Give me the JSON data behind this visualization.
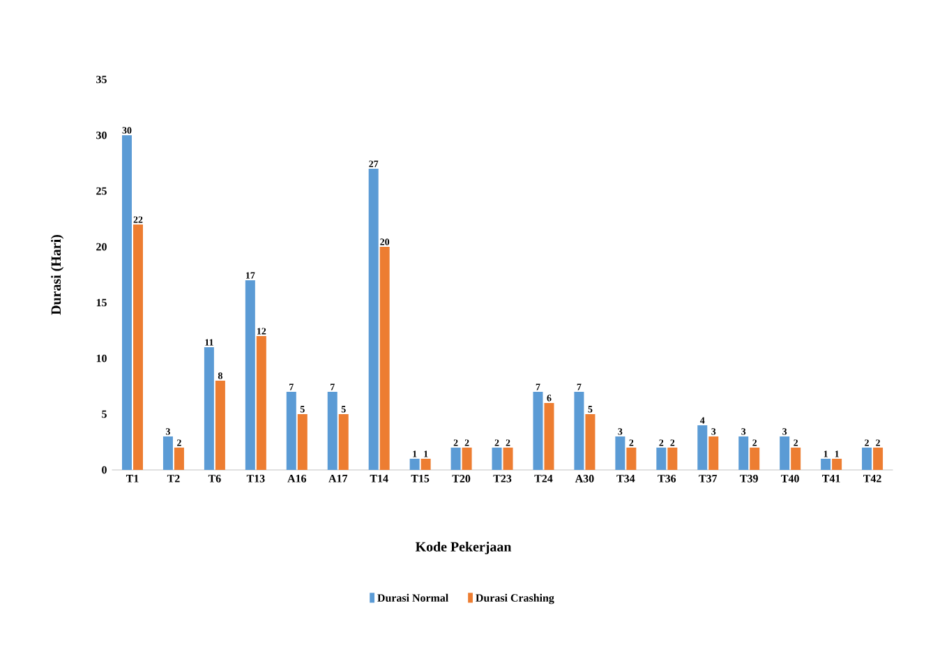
{
  "chart_data": {
    "type": "bar",
    "xlabel": "Kode Pekerjaan",
    "ylabel": "Durasi (Hari)",
    "categories": [
      "T1",
      "T2",
      "T6",
      "T13",
      "A16",
      "A17",
      "T14",
      "T15",
      "T20",
      "T23",
      "T24",
      "A30",
      "T34",
      "T36",
      "T37",
      "T39",
      "T40",
      "T41",
      "T42"
    ],
    "series": [
      {
        "name": "Durasi Normal",
        "color": "#5b9bd5",
        "values": [
          30,
          3,
          11,
          17,
          7,
          7,
          27,
          1,
          2,
          2,
          7,
          7,
          3,
          2,
          4,
          3,
          3,
          1,
          2
        ]
      },
      {
        "name": "Durasi Crashing",
        "color": "#ed7d31",
        "values": [
          22,
          2,
          8,
          12,
          5,
          5,
          20,
          1,
          2,
          2,
          6,
          5,
          2,
          2,
          3,
          2,
          2,
          1,
          2
        ]
      }
    ],
    "ylim": [
      0,
      35
    ],
    "yticks": [
      0,
      5,
      10,
      15,
      20,
      25,
      30,
      35
    ],
    "data_labels": true,
    "legend": "bottom"
  }
}
